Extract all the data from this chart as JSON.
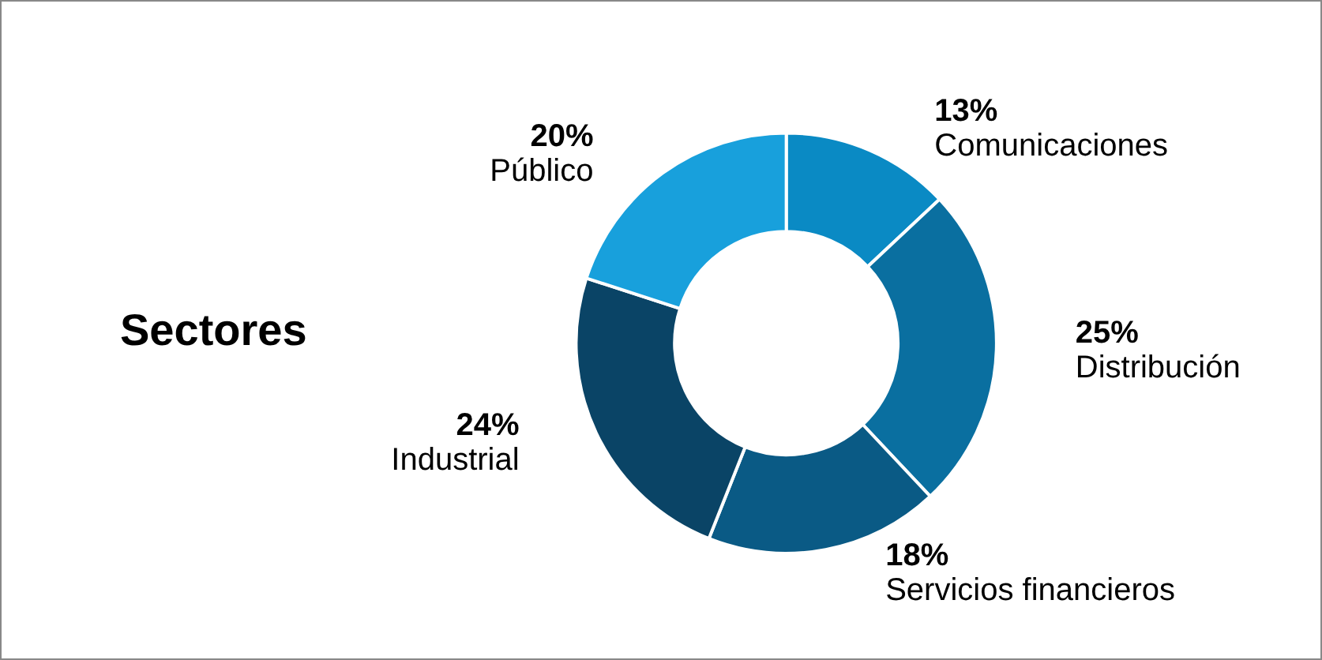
{
  "chart_data": {
    "type": "donut",
    "title": "Sectores",
    "categories": [
      "Comunicaciones",
      "Distribución",
      "Servicios financieros",
      "Industrial",
      "Público"
    ],
    "values": [
      13,
      25,
      18,
      24,
      20
    ],
    "value_labels": [
      "13%",
      "25%",
      "18%",
      "24%",
      "20%"
    ],
    "colors": [
      "#0a8ac4",
      "#0a6fa0",
      "#0a5a85",
      "#0a4466",
      "#18a0dc"
    ],
    "legend": false
  }
}
